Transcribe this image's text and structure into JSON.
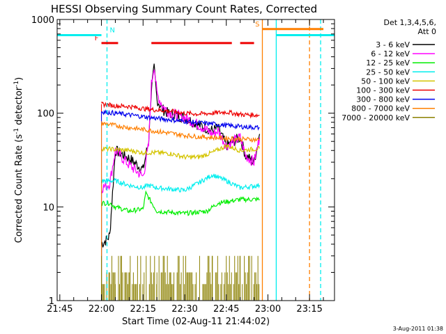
{
  "chart_data": {
    "type": "line",
    "title": "HESSI Observing Summary Count Rates, Corrected",
    "xlabel": "Start Time (02-Aug-11 21:44:02)",
    "ylabel": "Corrected Count Rate (s⁻¹ detector⁻¹)",
    "ylabel_main": "Corrected Count Rate (s",
    "ylabel_sup1": "-1",
    "ylabel_mid": " detector",
    "ylabel_sup2": "-1",
    "ylabel_end": ")",
    "y_scale": "log",
    "ylim": [
      1,
      1000
    ],
    "y_ticks": [
      1,
      10,
      100,
      1000
    ],
    "y_tick_labels": [
      "1",
      "10",
      "100",
      "1000"
    ],
    "xlim": [
      "21:44:02",
      "23:24:00"
    ],
    "x_ticks": [
      "21:45",
      "22:00",
      "22:15",
      "22:30",
      "22:45",
      "23:00",
      "23:15"
    ],
    "x_tick_labels": [
      "21:45",
      "22:00",
      "22:15",
      "22:30",
      "22:45",
      "23:00",
      "23:15"
    ],
    "legend": {
      "position": "right",
      "header_line1": "Det 1,3,4,5,6,",
      "header_line2": "Att 0",
      "entries": [
        {
          "label": "3 - 6 keV",
          "color": "#000000"
        },
        {
          "label": "6 - 12 keV",
          "color": "#ff00ff"
        },
        {
          "label": "12 - 25 keV",
          "color": "#00ee00"
        },
        {
          "label": "25 - 50 keV",
          "color": "#00eeee"
        },
        {
          "label": "50 - 100 keV",
          "color": "#d4c400"
        },
        {
          "label": "100 - 300 keV",
          "color": "#ee0000"
        },
        {
          "label": "300 - 800 keV",
          "color": "#0000ee"
        },
        {
          "label": "800 - 7000 keV",
          "color": "#ff7f00"
        },
        {
          "label": "7000 - 20000 keV",
          "color": "#8b8000"
        }
      ]
    },
    "series": [
      {
        "name": "3 - 6 keV",
        "color": "#000000",
        "x": [
          "22:00",
          "22:02",
          "22:03",
          "22:05",
          "22:10",
          "22:15",
          "22:17",
          "22:18",
          "22:19",
          "22:20",
          "22:22",
          "22:24",
          "22:27",
          "22:30",
          "22:35",
          "22:40",
          "22:42",
          "22:45",
          "22:50",
          "22:52",
          "22:55",
          "22:57"
        ],
        "y": [
          4,
          4.5,
          5,
          40,
          33,
          25,
          50,
          180,
          300,
          140,
          110,
          100,
          95,
          90,
          75,
          65,
          70,
          45,
          55,
          35,
          30,
          60
        ]
      },
      {
        "name": "6 - 12 keV",
        "color": "#ff00ff",
        "x": [
          "22:00",
          "22:02",
          "22:03",
          "22:05",
          "22:10",
          "22:15",
          "22:17",
          "22:18",
          "22:19",
          "22:20",
          "22:22",
          "22:24",
          "22:27",
          "22:30",
          "22:35",
          "22:40",
          "22:42",
          "22:45",
          "22:50",
          "22:52",
          "22:55",
          "22:57"
        ],
        "y": [
          16,
          17,
          18,
          40,
          28,
          21,
          45,
          200,
          330,
          160,
          120,
          105,
          95,
          90,
          75,
          60,
          65,
          45,
          55,
          35,
          30,
          55
        ]
      },
      {
        "name": "12 - 25 keV",
        "color": "#00ee00",
        "x": [
          "22:00",
          "22:03",
          "22:05",
          "22:10",
          "22:15",
          "22:16",
          "22:20",
          "22:30",
          "22:38",
          "22:42",
          "22:50",
          "22:57"
        ],
        "y": [
          11,
          11,
          10,
          9,
          9.5,
          14,
          9,
          8.5,
          9,
          11,
          12,
          12
        ]
      },
      {
        "name": "25 - 50 keV",
        "color": "#00eeee",
        "x": [
          "22:00",
          "22:03",
          "22:05",
          "22:10",
          "22:15",
          "22:17",
          "22:20",
          "22:30",
          "22:35",
          "22:40",
          "22:45",
          "22:50",
          "22:57"
        ],
        "y": [
          19,
          19,
          19,
          17,
          16,
          17,
          16,
          15,
          18,
          22,
          19,
          16,
          17
        ]
      },
      {
        "name": "50 - 100 keV",
        "color": "#d4c400",
        "x": [
          "22:00",
          "22:05",
          "22:10",
          "22:15",
          "22:20",
          "22:25",
          "22:30",
          "22:35",
          "22:40",
          "22:45",
          "22:50",
          "22:57"
        ],
        "y": [
          42,
          41,
          40,
          38,
          38,
          37,
          34,
          34,
          38,
          45,
          40,
          42
        ]
      },
      {
        "name": "100 - 300 keV",
        "color": "#ee0000",
        "x": [
          "22:00",
          "22:05",
          "22:10",
          "22:15",
          "22:20",
          "22:25",
          "22:30",
          "22:35",
          "22:40",
          "22:45",
          "22:50",
          "22:57"
        ],
        "y": [
          125,
          120,
          118,
          112,
          108,
          105,
          100,
          98,
          100,
          103,
          97,
          95
        ]
      },
      {
        "name": "300 - 800 keV",
        "color": "#0000ee",
        "x": [
          "22:00",
          "22:05",
          "22:10",
          "22:15",
          "22:20",
          "22:25",
          "22:30",
          "22:35",
          "22:40",
          "22:45",
          "22:50",
          "22:57"
        ],
        "y": [
          104,
          100,
          96,
          92,
          88,
          85,
          82,
          79,
          77,
          74,
          72,
          70
        ]
      },
      {
        "name": "800 - 7000 keV",
        "color": "#ff7f00",
        "x": [
          "22:00",
          "22:05",
          "22:10",
          "22:15",
          "22:20",
          "22:25",
          "22:30",
          "22:35",
          "22:40",
          "22:45",
          "22:50",
          "22:57"
        ],
        "y": [
          78,
          74,
          70,
          67,
          64,
          61,
          58,
          56,
          55,
          54,
          53,
          52
        ]
      },
      {
        "name": "7000 - 20000 keV",
        "color": "#8b8000",
        "x": [
          "22:00",
          "22:05",
          "22:10",
          "22:15",
          "22:20",
          "22:25",
          "22:30",
          "22:35",
          "22:40",
          "22:45",
          "22:50",
          "22:57"
        ],
        "y": [
          2,
          2,
          1.5,
          2,
          1.5,
          2,
          1.5,
          2.5,
          3,
          2,
          2,
          2
        ]
      }
    ],
    "flag_bars": [
      {
        "label": "F",
        "color": "#ee0000",
        "segments": [
          [
            "22:00",
            "22:06"
          ],
          [
            "22:18",
            "22:47"
          ],
          [
            "22:50",
            "22:55"
          ]
        ]
      },
      {
        "label": "N",
        "color": "#00eeee",
        "segments": [
          [
            "21:44:02",
            "22:00"
          ]
        ]
      },
      {
        "label": "S",
        "color": "#ff7f00",
        "segments": [
          [
            "22:58",
            "23:20"
          ]
        ]
      },
      {
        "label": "",
        "color": "#00eeee",
        "segments": [
          [
            "23:03",
            "23:24"
          ]
        ]
      }
    ],
    "vertical_lines": [
      {
        "time": "22:02",
        "color": "#00eeee",
        "style": "dashed"
      },
      {
        "time": "22:58",
        "color": "#ff7f00",
        "style": "solid"
      },
      {
        "time": "23:03",
        "color": "#00eeee",
        "style": "solid"
      },
      {
        "time": "23:15",
        "color": "#ff7f00",
        "style": "dashed"
      },
      {
        "time": "23:19",
        "color": "#00eeee",
        "style": "dashed"
      }
    ],
    "footer_text": "3-Aug-2011 01:38"
  }
}
